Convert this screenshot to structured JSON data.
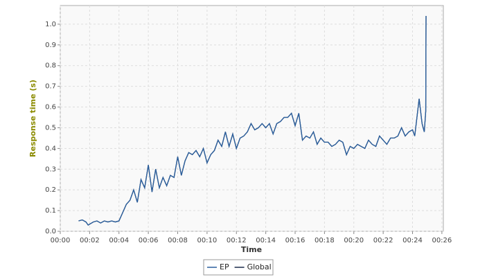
{
  "chart_data": {
    "type": "line",
    "x_label": "Time",
    "y_label": "Response time (s)",
    "x": [
      1.25,
      1.5,
      1.75,
      1.9,
      2.25,
      2.5,
      2.75,
      3.0,
      3.25,
      3.5,
      3.75,
      4.0,
      4.25,
      4.5,
      4.75,
      5.0,
      5.25,
      5.5,
      5.75,
      6.0,
      6.25,
      6.5,
      6.75,
      7.0,
      7.25,
      7.5,
      7.75,
      8.0,
      8.25,
      8.5,
      8.75,
      9.0,
      9.25,
      9.5,
      9.75,
      10.0,
      10.25,
      10.5,
      10.75,
      11.0,
      11.25,
      11.5,
      11.75,
      12.0,
      12.25,
      12.5,
      12.75,
      13.0,
      13.25,
      13.5,
      13.75,
      14.0,
      14.25,
      14.5,
      14.75,
      15.0,
      15.25,
      15.5,
      15.75,
      16.0,
      16.25,
      16.5,
      16.75,
      17.0,
      17.25,
      17.5,
      17.75,
      18.0,
      18.25,
      18.5,
      18.75,
      19.0,
      19.25,
      19.5,
      19.75,
      20.0,
      20.25,
      20.5,
      20.75,
      21.0,
      21.25,
      21.5,
      21.75,
      22.0,
      22.25,
      22.5,
      22.75,
      23.0,
      23.25,
      23.5,
      23.75,
      24.0,
      24.15,
      24.45,
      24.65,
      24.8,
      24.9,
      24.92
    ],
    "series": [
      {
        "name": "EP",
        "color": "#2a5f9e",
        "values": [
          0.05,
          0.055,
          0.045,
          0.03,
          0.045,
          0.05,
          0.04,
          0.05,
          0.045,
          0.05,
          0.045,
          0.05,
          0.09,
          0.13,
          0.15,
          0.2,
          0.14,
          0.25,
          0.21,
          0.32,
          0.19,
          0.3,
          0.21,
          0.26,
          0.22,
          0.27,
          0.26,
          0.36,
          0.27,
          0.34,
          0.38,
          0.37,
          0.39,
          0.36,
          0.4,
          0.33,
          0.37,
          0.39,
          0.44,
          0.41,
          0.48,
          0.41,
          0.47,
          0.4,
          0.45,
          0.46,
          0.48,
          0.52,
          0.49,
          0.5,
          0.52,
          0.5,
          0.52,
          0.47,
          0.52,
          0.53,
          0.55,
          0.55,
          0.57,
          0.51,
          0.57,
          0.44,
          0.46,
          0.45,
          0.48,
          0.42,
          0.45,
          0.43,
          0.43,
          0.41,
          0.42,
          0.44,
          0.43,
          0.37,
          0.41,
          0.4,
          0.42,
          0.41,
          0.4,
          0.44,
          0.42,
          0.41,
          0.46,
          0.44,
          0.42,
          0.45,
          0.45,
          0.46,
          0.5,
          0.46,
          0.48,
          0.49,
          0.46,
          0.64,
          0.52,
          0.48,
          0.58,
          1.04
        ]
      },
      {
        "name": "Global",
        "color": "#1a2a4a",
        "values": [
          0.05,
          0.055,
          0.045,
          0.03,
          0.045,
          0.05,
          0.04,
          0.05,
          0.045,
          0.05,
          0.045,
          0.05,
          0.09,
          0.13,
          0.15,
          0.2,
          0.14,
          0.25,
          0.21,
          0.32,
          0.19,
          0.3,
          0.21,
          0.26,
          0.22,
          0.27,
          0.26,
          0.36,
          0.27,
          0.34,
          0.38,
          0.37,
          0.39,
          0.36,
          0.4,
          0.33,
          0.37,
          0.39,
          0.44,
          0.41,
          0.48,
          0.41,
          0.47,
          0.4,
          0.45,
          0.46,
          0.48,
          0.52,
          0.49,
          0.5,
          0.52,
          0.5,
          0.52,
          0.47,
          0.52,
          0.53,
          0.55,
          0.55,
          0.57,
          0.51,
          0.57,
          0.44,
          0.46,
          0.45,
          0.48,
          0.42,
          0.45,
          0.43,
          0.43,
          0.41,
          0.42,
          0.44,
          0.43,
          0.37,
          0.41,
          0.4,
          0.42,
          0.41,
          0.4,
          0.44,
          0.42,
          0.41,
          0.46,
          0.44,
          0.42,
          0.45,
          0.45,
          0.46,
          0.5,
          0.46,
          0.48,
          0.49,
          0.46,
          0.64,
          0.52,
          0.48,
          0.58,
          1.04
        ]
      }
    ],
    "xlim": [
      0,
      26.1
    ],
    "ylim": [
      0,
      1.09
    ],
    "xticks": [
      {
        "value": 0,
        "label": "00:00"
      },
      {
        "value": 2,
        "label": "00:02"
      },
      {
        "value": 4,
        "label": "00:04"
      },
      {
        "value": 6,
        "label": "00:06"
      },
      {
        "value": 8,
        "label": "00:08"
      },
      {
        "value": 10,
        "label": "00:10"
      },
      {
        "value": 12,
        "label": "00:12"
      },
      {
        "value": 14,
        "label": "00:14"
      },
      {
        "value": 16,
        "label": "00:16"
      },
      {
        "value": 18,
        "label": "00:18"
      },
      {
        "value": 20,
        "label": "00:20"
      },
      {
        "value": 22,
        "label": "00:22"
      },
      {
        "value": 24,
        "label": "00:24"
      },
      {
        "value": 26,
        "label": "00:26"
      }
    ],
    "yticks": [
      {
        "value": 0,
        "label": "0.0"
      },
      0.1,
      0.2,
      0.3,
      0.4,
      0.5,
      0.6,
      0.7,
      0.8,
      0.9,
      {
        "value": 1,
        "label": "1.0"
      }
    ],
    "grid": true
  }
}
